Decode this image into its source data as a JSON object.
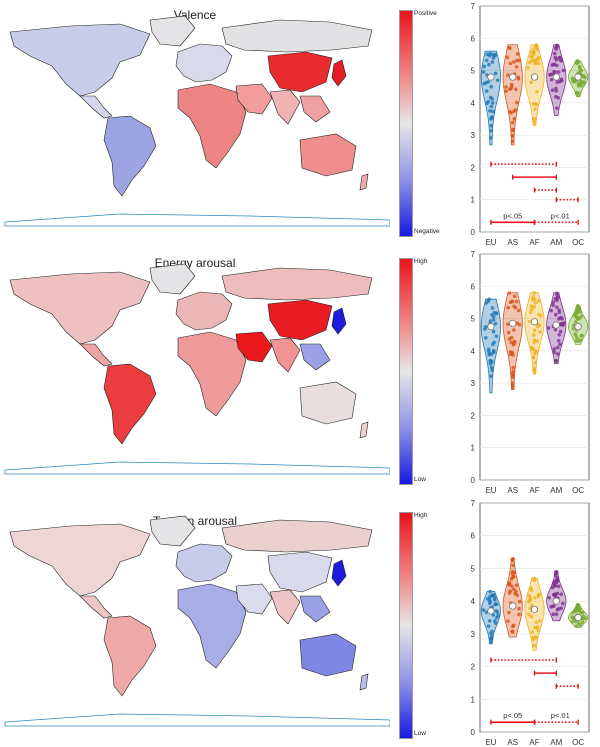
{
  "chart_data": [
    {
      "type": "violin",
      "title": "Valence",
      "colorbar": {
        "high": "Positive",
        "low": "Negative"
      },
      "categories": [
        "EU",
        "AS",
        "AF",
        "AM",
        "OC"
      ],
      "ylim": [
        0,
        7
      ],
      "yticks": [
        0,
        1,
        2,
        3,
        4,
        5,
        6,
        7
      ],
      "series": [
        {
          "name": "EU",
          "median": 4.8,
          "min": 2.7,
          "max": 5.6,
          "color": "#1f77b4"
        },
        {
          "name": "AS",
          "median": 4.8,
          "min": 2.7,
          "max": 5.8,
          "color": "#d95319"
        },
        {
          "name": "AF",
          "median": 4.8,
          "min": 3.3,
          "max": 5.8,
          "color": "#edb120"
        },
        {
          "name": "AM",
          "median": 4.8,
          "min": 3.6,
          "max": 5.8,
          "color": "#7e2f8e"
        },
        {
          "name": "OC",
          "median": 4.8,
          "min": 4.2,
          "max": 5.3,
          "color": "#77ac30"
        }
      ],
      "comparisons": [
        {
          "from": "EU",
          "to": "AM",
          "y": 2.1,
          "style": "dotted"
        },
        {
          "from": "AS",
          "to": "AM",
          "y": 1.7,
          "style": "solid"
        },
        {
          "from": "AF",
          "to": "AM",
          "y": 1.3,
          "style": "dotted"
        },
        {
          "from": "AM",
          "to": "OC",
          "y": 1.0,
          "style": "dotted"
        },
        {
          "from": "EU",
          "to": "AF",
          "y": 0.3,
          "style": "solid"
        },
        {
          "from": "AF",
          "to": "OC",
          "y": 0.3,
          "style": "dotted"
        }
      ],
      "legend": {
        "solid": "p<.05",
        "dotted": "p<.01"
      }
    },
    {
      "type": "violin",
      "title": "Energy arousal",
      "colorbar": {
        "high": "High",
        "low": "Low"
      },
      "categories": [
        "EU",
        "AS",
        "AF",
        "AM",
        "OC"
      ],
      "ylim": [
        0,
        7
      ],
      "yticks": [
        0,
        1,
        2,
        3,
        4,
        5,
        6,
        7
      ],
      "series": [
        {
          "name": "EU",
          "median": 4.75,
          "min": 2.7,
          "max": 5.6,
          "color": "#1f77b4"
        },
        {
          "name": "AS",
          "median": 4.85,
          "min": 2.8,
          "max": 5.8,
          "color": "#d95319"
        },
        {
          "name": "AF",
          "median": 4.9,
          "min": 3.3,
          "max": 5.8,
          "color": "#edb120"
        },
        {
          "name": "AM",
          "median": 4.8,
          "min": 3.6,
          "max": 5.8,
          "color": "#7e2f8e"
        },
        {
          "name": "OC",
          "median": 4.75,
          "min": 4.2,
          "max": 5.4,
          "color": "#77ac30"
        }
      ],
      "comparisons": [],
      "legend": {}
    },
    {
      "type": "violin",
      "title": "Tension arousal",
      "colorbar": {
        "high": "High",
        "low": "Low"
      },
      "categories": [
        "EU",
        "AS",
        "AF",
        "AM",
        "OC"
      ],
      "ylim": [
        0,
        7
      ],
      "yticks": [
        0,
        1,
        2,
        3,
        4,
        5,
        6,
        7
      ],
      "series": [
        {
          "name": "EU",
          "median": 3.7,
          "min": 2.7,
          "max": 4.3,
          "color": "#1f77b4"
        },
        {
          "name": "AS",
          "median": 3.85,
          "min": 2.9,
          "max": 5.3,
          "color": "#d95319"
        },
        {
          "name": "AF",
          "median": 3.75,
          "min": 2.5,
          "max": 4.7,
          "color": "#edb120"
        },
        {
          "name": "AM",
          "median": 4.0,
          "min": 3.4,
          "max": 4.9,
          "color": "#7e2f8e"
        },
        {
          "name": "OC",
          "median": 3.5,
          "min": 3.2,
          "max": 3.9,
          "color": "#77ac30"
        }
      ],
      "comparisons": [
        {
          "from": "EU",
          "to": "AM",
          "y": 2.2,
          "style": "dotted"
        },
        {
          "from": "AF",
          "to": "AM",
          "y": 1.8,
          "style": "solid"
        },
        {
          "from": "AM",
          "to": "OC",
          "y": 1.4,
          "style": "dotted"
        },
        {
          "from": "EU",
          "to": "AF",
          "y": 0.3,
          "style": "solid"
        },
        {
          "from": "AF",
          "to": "OC",
          "y": 0.3,
          "style": "dotted"
        }
      ],
      "legend": {
        "solid": "p<.05",
        "dotted": "p<.01"
      }
    }
  ],
  "colors": {
    "significance": "#e8151b",
    "axis": "#444444",
    "ocean_outline": "#2a88c0"
  }
}
